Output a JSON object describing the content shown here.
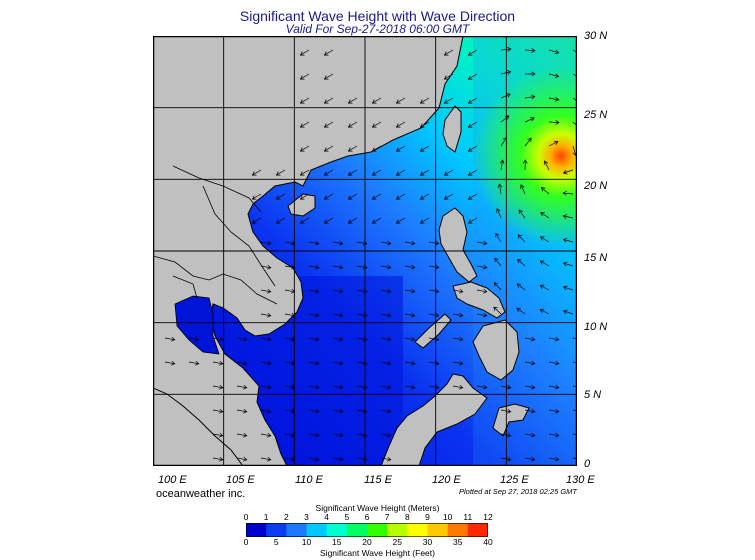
{
  "title": "Significant Wave Height with Wave Direction",
  "subtitle": "Valid For Sep-27-2018 06:00 GMT",
  "credit": "oceanweather inc.",
  "plotted": "Plotted at Sep 27, 2018 02:25 GMT",
  "lat_labels": [
    "30 N",
    "25 N",
    "20 N",
    "15 N",
    "10 N",
    "5 N",
    "0"
  ],
  "lon_labels": [
    "100 E",
    "105 E",
    "110 E",
    "115 E",
    "120 E",
    "125 E",
    "130 E"
  ],
  "colorbar": {
    "meters_title": "Significant Wave Height (Meters)",
    "feet_title": "Significant Wave Height (Feet)",
    "meters_ticks": [
      "0",
      "1",
      "2",
      "3",
      "4",
      "5",
      "6",
      "7",
      "8",
      "9",
      "10",
      "11",
      "12"
    ],
    "feet_ticks": [
      "0",
      "5",
      "10",
      "15",
      "20",
      "25",
      "30",
      "35",
      "40"
    ],
    "colors": [
      "#0000cd",
      "#0a3cf0",
      "#1e78ff",
      "#00c8ff",
      "#00ffd0",
      "#00ff64",
      "#32ff00",
      "#b4ff00",
      "#ffff00",
      "#ffc800",
      "#ff7800",
      "#ff2800"
    ]
  },
  "colors": {
    "land": "#c0c0c0",
    "title": "#1a1a8c"
  }
}
